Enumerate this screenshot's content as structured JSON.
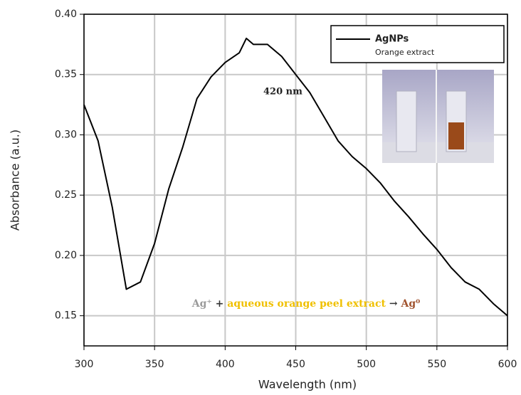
{
  "chart_data": {
    "type": "line",
    "x_label": "Wavelength (nm)",
    "y_label": "Absorbance (a.u.)",
    "x": [
      300,
      310,
      320,
      330,
      340,
      350,
      360,
      370,
      380,
      390,
      400,
      410,
      415,
      420,
      430,
      440,
      450,
      460,
      470,
      480,
      490,
      500,
      510,
      520,
      530,
      540,
      550,
      560,
      570,
      580,
      590,
      600
    ],
    "series": [
      {
        "name": "AgNPs",
        "color": "#000000",
        "values": [
          0.325,
          0.295,
          0.24,
          0.172,
          0.178,
          0.21,
          0.255,
          0.29,
          0.33,
          0.348,
          0.36,
          0.368,
          0.38,
          0.375,
          0.375,
          0.365,
          0.35,
          0.335,
          0.315,
          0.295,
          0.282,
          0.272,
          0.26,
          0.245,
          0.232,
          0.218,
          0.205,
          0.19,
          0.178,
          0.172,
          0.16,
          0.15
        ]
      }
    ],
    "xlim": [
      300,
      600
    ],
    "xticks": [
      300,
      350,
      400,
      450,
      500,
      550,
      600
    ],
    "ylim": [
      0.125,
      0.4
    ],
    "yticks": [
      0.15,
      {
        "value": 0.2,
        "label": "0.20"
      },
      0.25,
      {
        "value": 0.3,
        "label": "0.30"
      },
      0.35,
      {
        "value": 0.4,
        "label": "0.40"
      }
    ],
    "grid": true,
    "legend": "upper right",
    "legend_note": "Orange extract",
    "annotation": "420 nm",
    "equation": [
      {
        "text": "Ag⁺",
        "color": "#9a9a9a"
      },
      {
        "text": "+",
        "color": "#333333"
      },
      {
        "text": "aqueous orange peel extract",
        "color": "#f0c000"
      },
      {
        "text": "→",
        "color": "#333333"
      },
      {
        "text": "Ag⁰",
        "color": "#a0522d"
      }
    ]
  }
}
